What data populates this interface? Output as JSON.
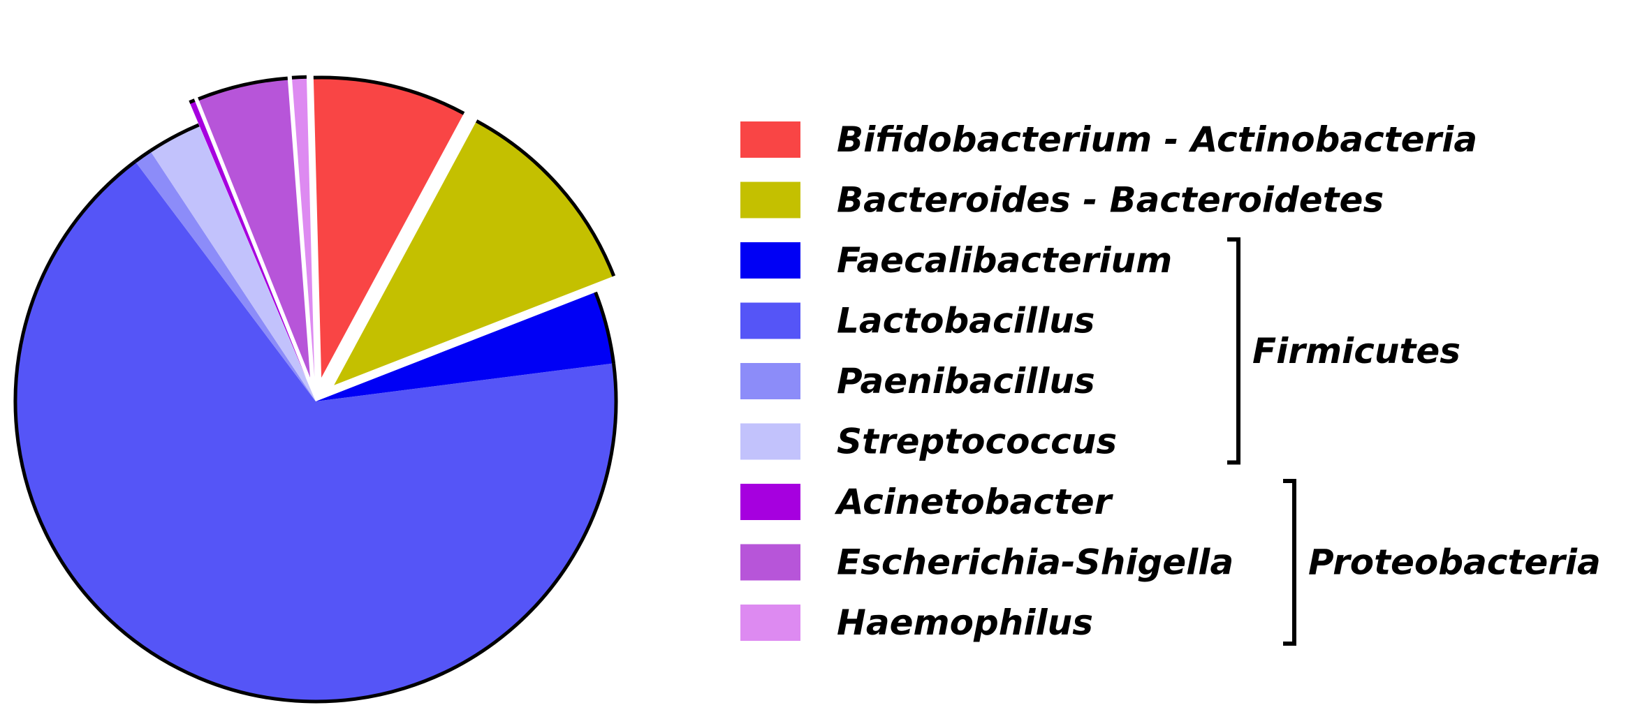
{
  "chart_data": {
    "type": "pie",
    "title": "",
    "legend_position": "right",
    "slices": [
      {
        "label": "Bifidobacterium - Actinobacteria",
        "value": 8.5,
        "color": "#F94545",
        "exploded": true
      },
      {
        "label": "Bacteroides - Bacteroidetes",
        "value": 11.5,
        "color": "#C4C000",
        "exploded": true
      },
      {
        "label": "Faecalibacterium",
        "value": 4.0,
        "color": "#0000F5",
        "exploded": false
      },
      {
        "label": "Lactobacillus",
        "value": 68.5,
        "color": "#5555F7",
        "exploded": false
      },
      {
        "label": "Paenibacillus",
        "value": 1.0,
        "color": "#8C8CF9",
        "exploded": false
      },
      {
        "label": "Streptococcus",
        "value": 3.0,
        "color": "#C2C2FC",
        "exploded": false
      },
      {
        "label": "Acinetobacter",
        "value": 0.3,
        "color": "#A600DF",
        "exploded": true
      },
      {
        "label": "Escherichia-Shigella",
        "value": 5.0,
        "color": "#B755D9",
        "exploded": true
      },
      {
        "label": "Haemophilus",
        "value": 0.8,
        "color": "#DD8AF1",
        "exploded": true
      }
    ],
    "groups": [
      {
        "label": "Firmicutes",
        "members": [
          "Faecalibacterium",
          "Lactobacillus",
          "Paenibacillus",
          "Streptococcus"
        ]
      },
      {
        "label": "Proteobacteria",
        "members": [
          "Acinetobacter",
          "Escherichia-Shigella",
          "Haemophilus"
        ]
      }
    ]
  }
}
